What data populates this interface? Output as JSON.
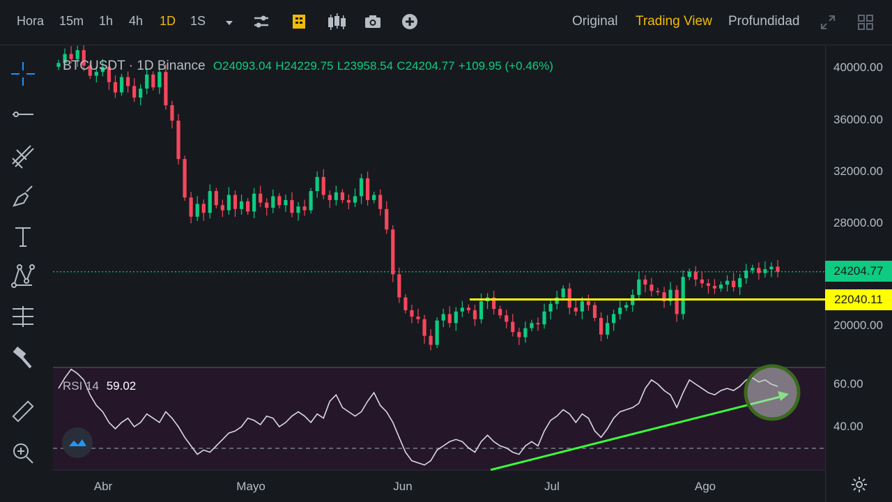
{
  "toolbar": {
    "timeframes": [
      "Hora",
      "15m",
      "1h",
      "4h",
      "1D",
      "1S"
    ],
    "active_timeframe": "1D",
    "views": [
      "Original",
      "Trading View",
      "Profundidad"
    ],
    "active_view": "Trading View",
    "accent_color": "#f0b90b"
  },
  "legend": {
    "symbol": "BTCUSDT",
    "interval": "· 1D",
    "exchange": "Binance",
    "open": "O24093.04",
    "high": "H24229.75",
    "low": "L23958.54",
    "close": "C24204.77",
    "change": "+109.95 (+0.46%)"
  },
  "rsi": {
    "label": "RSI 14",
    "value": "59.02"
  },
  "price_axis": [
    "40000.00",
    "36000.00",
    "32000.00",
    "28000.00",
    "20000.00"
  ],
  "current_price_tag": "24204.77",
  "level_tag": "22040.11",
  "rsi_axis": [
    "60.00",
    "40.00"
  ],
  "x_axis": [
    "Abr",
    "Mayo",
    "Jun",
    "Jul",
    "Ago"
  ],
  "colors": {
    "up": "#0ecb81",
    "down": "#f6465d",
    "level": "#ffff00",
    "trend": "#39ff39",
    "rsi_bg": "#25162a"
  },
  "chart_data": {
    "type": "candlestick",
    "symbol": "BTCUSDT",
    "ylim": [
      16000,
      41000
    ],
    "horizontal_level": 22040.11,
    "last_price": 24204.77,
    "close_series": [
      40500,
      41200,
      40800,
      41500,
      40300,
      39500,
      39800,
      40200,
      39000,
      38200,
      39400,
      38700,
      37800,
      38500,
      39600,
      38600,
      39800,
      37200,
      36000,
      33000,
      30000,
      28500,
      29500,
      28800,
      30500,
      29400,
      29000,
      30200,
      29100,
      29700,
      28900,
      30300,
      29600,
      29200,
      30100,
      29400,
      29800,
      28800,
      29300,
      29000,
      30500,
      31600,
      30200,
      29800,
      30400,
      29800,
      29600,
      30100,
      31500,
      29800,
      30200,
      29100,
      27500,
      24000,
      22200,
      21200,
      20700,
      20500,
      19200,
      18500,
      20400,
      20900,
      20200,
      21100,
      21400,
      21200,
      20500,
      21900,
      22200,
      21300,
      20800,
      20300,
      19500,
      19100,
      19800,
      20200,
      20100,
      21100,
      21700,
      22200,
      22900,
      21400,
      21100,
      21900,
      21600,
      20600,
      19300,
      20200,
      20900,
      21400,
      21600,
      22400,
      23600,
      23200,
      22700,
      22600,
      21900,
      22800,
      20900,
      23800,
      24200,
      23600,
      23300,
      23100,
      22900,
      23200,
      23500,
      23000,
      23700,
      24300,
      24500,
      24100,
      24400,
      24600,
      24200
    ],
    "rsi_14": [
      58,
      63,
      67,
      65,
      62,
      55,
      50,
      47,
      42,
      39,
      42,
      44,
      40,
      42,
      46,
      44,
      42,
      47,
      44,
      40,
      35,
      31,
      27,
      29,
      28,
      31,
      34,
      37,
      38,
      40,
      44,
      43,
      41,
      45,
      44,
      40,
      42,
      45,
      47,
      45,
      42,
      46,
      44,
      52,
      55,
      49,
      47,
      45,
      47,
      52,
      56,
      50,
      47,
      42,
      35,
      28,
      24,
      23,
      22,
      24,
      29,
      31,
      33,
      34,
      33,
      30,
      28,
      33,
      36,
      33,
      31,
      30,
      28,
      27,
      31,
      33,
      31,
      38,
      43,
      45,
      48,
      46,
      42,
      46,
      44,
      38,
      35,
      39,
      44,
      47,
      48,
      49,
      51,
      58,
      62,
      60,
      57,
      55,
      49,
      56,
      62,
      60,
      58,
      56,
      55,
      57,
      58,
      57,
      59,
      62,
      63,
      61,
      62,
      60,
      59
    ],
    "rsi_levels": [
      70,
      30
    ],
    "trendline": {
      "from": "2022-06-18",
      "to": "2022-08-14",
      "rsi_from": 24,
      "rsi_to": 55
    }
  }
}
